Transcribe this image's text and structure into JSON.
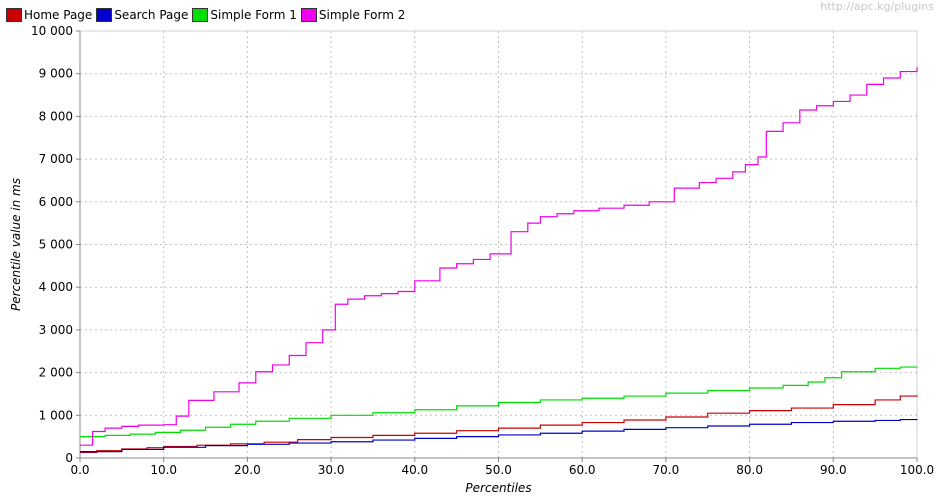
{
  "watermark": "http://apc.kg/plugins",
  "chart_data": {
    "type": "line",
    "xlabel": "Percentiles",
    "ylabel": "Percentile value in ms",
    "xlim": [
      0,
      100
    ],
    "ylim": [
      0,
      10000
    ],
    "x_ticks": [
      "0.0",
      "10.0",
      "20.0",
      "30.0",
      "40.0",
      "50.0",
      "60.0",
      "70.0",
      "80.0",
      "90.0",
      "100.0"
    ],
    "y_ticks": [
      "0",
      "1 000",
      "2 000",
      "3 000",
      "4 000",
      "5 000",
      "6 000",
      "7 000",
      "8 000",
      "9 000",
      "10 000"
    ],
    "grid": true,
    "legend_position": "top-left",
    "series": [
      {
        "name": "Home Page",
        "color": "#cc0000",
        "step": true,
        "x": [
          0,
          2,
          5,
          8,
          10,
          14,
          18,
          22,
          26,
          30,
          35,
          40,
          45,
          50,
          55,
          60,
          65,
          70,
          75,
          80,
          85,
          90,
          95,
          98,
          100
        ],
        "y": [
          130,
          170,
          210,
          240,
          270,
          300,
          330,
          370,
          430,
          480,
          530,
          580,
          640,
          700,
          770,
          830,
          890,
          960,
          1050,
          1110,
          1170,
          1250,
          1360,
          1450,
          1470
        ]
      },
      {
        "name": "Search Page",
        "color": "#0000cc",
        "step": true,
        "x": [
          0,
          5,
          10,
          15,
          20,
          25,
          30,
          35,
          40,
          45,
          50,
          55,
          60,
          65,
          70,
          75,
          80,
          85,
          90,
          95,
          98,
          100
        ],
        "y": [
          150,
          200,
          250,
          290,
          320,
          350,
          380,
          420,
          460,
          500,
          540,
          580,
          630,
          670,
          710,
          750,
          790,
          830,
          860,
          880,
          900,
          910
        ]
      },
      {
        "name": "Simple Form 1",
        "color": "#00dd00",
        "step": true,
        "x": [
          0,
          3,
          6,
          9,
          12,
          15,
          18,
          21,
          25,
          30,
          35,
          40,
          45,
          50,
          55,
          60,
          65,
          70,
          75,
          80,
          84,
          87,
          89,
          91,
          95,
          98,
          100
        ],
        "y": [
          500,
          530,
          560,
          600,
          650,
          720,
          790,
          860,
          930,
          1000,
          1060,
          1130,
          1220,
          1300,
          1360,
          1400,
          1450,
          1520,
          1580,
          1640,
          1700,
          1780,
          1880,
          2020,
          2100,
          2130,
          2140
        ]
      },
      {
        "name": "Simple Form 2",
        "color": "#ee00ee",
        "step": true,
        "x": [
          0,
          1.5,
          3,
          5,
          7,
          10,
          11.5,
          13,
          16,
          19,
          21,
          23,
          25,
          27,
          29,
          30.5,
          32,
          34,
          36,
          38,
          40,
          43,
          45,
          47,
          49,
          51.5,
          53.5,
          55,
          57,
          59,
          62,
          65,
          68,
          71,
          74,
          76,
          78,
          79.5,
          81,
          82,
          84,
          86,
          88,
          90,
          92,
          94,
          96,
          98,
          100
        ],
        "y": [
          300,
          620,
          700,
          740,
          770,
          780,
          980,
          1350,
          1550,
          1760,
          2020,
          2180,
          2400,
          2700,
          3000,
          3600,
          3720,
          3800,
          3850,
          3900,
          4150,
          4450,
          4550,
          4650,
          4780,
          5300,
          5500,
          5650,
          5720,
          5790,
          5850,
          5920,
          6000,
          6320,
          6450,
          6550,
          6700,
          6870,
          7050,
          7650,
          7850,
          8150,
          8250,
          8350,
          8500,
          8750,
          8900,
          9050,
          9150
        ]
      }
    ]
  }
}
